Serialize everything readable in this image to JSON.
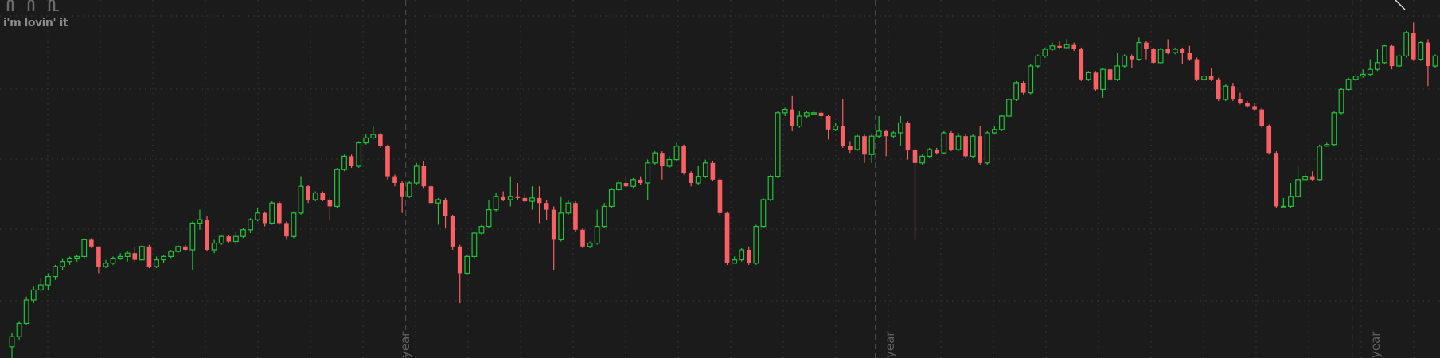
{
  "logo": {
    "tagline": "i'm lovin' it",
    "icon": "golden-arches-icon"
  },
  "year_labels": [
    "year",
    "year",
    "year"
  ],
  "colors": {
    "background": "#1b1b1c",
    "up": "#22c23a",
    "down": "#fa5f63",
    "grid": "#3a3a3a",
    "divider": "#4a4a4a",
    "label": "#5f5f5f"
  },
  "chart_data": {
    "type": "candlestick",
    "title": "",
    "xlabel": "",
    "ylabel": "",
    "ylim": [
      0,
      100
    ],
    "grid": true,
    "year_divider_index": [
      55,
      120,
      186
    ],
    "candles": [
      [
        1.0,
        4.0,
        -3.0,
        5.0
      ],
      [
        4.0,
        8.0,
        3.0,
        8.5
      ],
      [
        8.0,
        15.0,
        7.5,
        16.0
      ],
      [
        15.0,
        18.0,
        14.0,
        19.0
      ],
      [
        18.0,
        19.5,
        17.5,
        21.5
      ],
      [
        19.5,
        22.0,
        18.0,
        23.0
      ],
      [
        22.0,
        25.0,
        21.0,
        25.5
      ],
      [
        25.0,
        26.5,
        24.0,
        27.5
      ],
      [
        26.5,
        27.5,
        25.5,
        28.0
      ],
      [
        27.5,
        28.0,
        26.5,
        28.5
      ],
      [
        28.0,
        33.0,
        27.5,
        33.5
      ],
      [
        33.0,
        31.0,
        30.5,
        33.5
      ],
      [
        31.0,
        25.0,
        23.0,
        31.0
      ],
      [
        25.0,
        26.0,
        24.5,
        27.0
      ],
      [
        26.0,
        27.5,
        25.5,
        28.0
      ],
      [
        27.5,
        28.0,
        27.0,
        29.0
      ],
      [
        28.0,
        29.0,
        26.5,
        29.5
      ],
      [
        29.0,
        27.0,
        26.5,
        31.0
      ],
      [
        27.0,
        31.0,
        26.5,
        31.5
      ],
      [
        31.0,
        25.0,
        24.5,
        31.5
      ],
      [
        25.0,
        27.0,
        24.5,
        28.0
      ],
      [
        27.0,
        28.0,
        26.0,
        28.5
      ],
      [
        28.0,
        29.5,
        27.5,
        30.0
      ],
      [
        29.5,
        31.0,
        29.0,
        31.5
      ],
      [
        31.0,
        30.0,
        29.5,
        31.5
      ],
      [
        30.0,
        38.0,
        24.0,
        38.5
      ],
      [
        38.0,
        39.0,
        36.0,
        42.0
      ],
      [
        39.0,
        30.0,
        29.5,
        40.0
      ],
      [
        30.0,
        32.0,
        29.0,
        33.0
      ],
      [
        32.0,
        34.0,
        31.5,
        34.5
      ],
      [
        34.0,
        32.5,
        32.0,
        34.5
      ],
      [
        32.5,
        34.0,
        31.5,
        35.5
      ],
      [
        34.0,
        36.0,
        33.5,
        36.5
      ],
      [
        36.0,
        39.0,
        35.0,
        39.5
      ],
      [
        39.0,
        41.0,
        38.5,
        42.5
      ],
      [
        41.0,
        38.0,
        37.0,
        41.5
      ],
      [
        38.0,
        44.0,
        37.5,
        44.5
      ],
      [
        44.0,
        38.0,
        37.5,
        44.5
      ],
      [
        38.0,
        34.0,
        33.0,
        38.5
      ],
      [
        34.0,
        41.0,
        33.5,
        41.5
      ],
      [
        41.0,
        49.0,
        40.5,
        52.0
      ],
      [
        49.0,
        45.0,
        44.0,
        49.5
      ],
      [
        45.0,
        47.0,
        44.5,
        47.5
      ],
      [
        47.0,
        45.0,
        44.5,
        47.5
      ],
      [
        45.0,
        43.0,
        39.0,
        45.5
      ],
      [
        43.0,
        54.0,
        42.5,
        54.5
      ],
      [
        54.0,
        58.0,
        53.5,
        58.5
      ],
      [
        58.0,
        55.0,
        54.5,
        58.5
      ],
      [
        55.0,
        62.0,
        54.5,
        62.5
      ],
      [
        62.0,
        63.5,
        61.5,
        64.5
      ],
      [
        63.5,
        64.5,
        63.0,
        67.0
      ],
      [
        64.5,
        61.0,
        60.5,
        65.0
      ],
      [
        61.0,
        52.0,
        51.0,
        61.5
      ],
      [
        52.0,
        50.0,
        49.0,
        52.5
      ],
      [
        50.0,
        46.0,
        41.0,
        50.5
      ],
      [
        46.0,
        50.0,
        45.5,
        50.5
      ],
      [
        50.0,
        55.0,
        49.5,
        56.0
      ],
      [
        55.0,
        49.0,
        48.5,
        56.5
      ],
      [
        49.0,
        44.0,
        43.5,
        49.5
      ],
      [
        44.0,
        45.0,
        37.5,
        45.5
      ],
      [
        45.0,
        40.0,
        36.5,
        45.5
      ],
      [
        40.0,
        31.0,
        30.0,
        40.5
      ],
      [
        31.0,
        23.0,
        14.0,
        31.5
      ],
      [
        23.0,
        28.0,
        22.5,
        28.5
      ],
      [
        28.0,
        35.0,
        27.5,
        35.5
      ],
      [
        35.0,
        37.0,
        34.5,
        37.5
      ],
      [
        37.0,
        42.0,
        36.5,
        45.0
      ],
      [
        42.0,
        46.0,
        41.5,
        47.0
      ],
      [
        46.0,
        45.0,
        44.5,
        47.5
      ],
      [
        45.0,
        46.0,
        43.0,
        52.0
      ],
      [
        46.0,
        45.5,
        45.0,
        50.0
      ],
      [
        45.5,
        44.5,
        44.0,
        47.0
      ],
      [
        44.5,
        45.5,
        42.0,
        49.0
      ],
      [
        45.5,
        44.0,
        38.0,
        49.0
      ],
      [
        44.0,
        42.0,
        39.0,
        45.0
      ],
      [
        42.0,
        33.0,
        24.0,
        43.0
      ],
      [
        33.0,
        41.0,
        32.5,
        46.0
      ],
      [
        41.0,
        44.0,
        40.5,
        45.0
      ],
      [
        44.0,
        36.0,
        35.5,
        44.5
      ],
      [
        36.0,
        31.0,
        30.5,
        36.5
      ],
      [
        31.0,
        32.0,
        30.5,
        32.5
      ],
      [
        32.0,
        37.0,
        31.5,
        42.0
      ],
      [
        37.0,
        43.0,
        36.5,
        44.0
      ],
      [
        43.0,
        48.0,
        42.5,
        48.5
      ],
      [
        48.0,
        50.0,
        47.5,
        51.0
      ],
      [
        50.0,
        49.0,
        48.5,
        52.0
      ],
      [
        49.0,
        51.0,
        48.5,
        51.5
      ],
      [
        51.0,
        50.0,
        49.5,
        52.0
      ],
      [
        50.0,
        56.0,
        45.0,
        57.0
      ],
      [
        56.0,
        59.0,
        55.5,
        59.5
      ],
      [
        59.0,
        55.0,
        51.0,
        59.5
      ],
      [
        55.0,
        57.0,
        54.5,
        58.0
      ],
      [
        57.0,
        61.0,
        56.5,
        62.0
      ],
      [
        61.0,
        53.0,
        52.5,
        61.5
      ],
      [
        53.0,
        50.0,
        49.0,
        53.5
      ],
      [
        50.0,
        52.0,
        49.5,
        55.0
      ],
      [
        52.0,
        56.0,
        51.5,
        57.0
      ],
      [
        56.0,
        51.0,
        50.5,
        56.5
      ],
      [
        51.0,
        41.0,
        40.0,
        51.5
      ],
      [
        41.0,
        26.0,
        25.5,
        41.5
      ],
      [
        26.0,
        27.0,
        26.5,
        28.0
      ],
      [
        27.0,
        30.0,
        26.5,
        30.5
      ],
      [
        30.0,
        26.0,
        25.5,
        31.0
      ],
      [
        26.0,
        37.0,
        25.5,
        37.5
      ],
      [
        37.0,
        45.0,
        36.5,
        45.5
      ],
      [
        45.0,
        52.0,
        44.5,
        52.5
      ],
      [
        52.0,
        71.0,
        51.5,
        71.5
      ],
      [
        71.0,
        72.0,
        70.0,
        72.5
      ],
      [
        72.0,
        67.0,
        65.5,
        76.0
      ],
      [
        67.0,
        70.0,
        66.5,
        71.5
      ],
      [
        70.0,
        71.0,
        69.5,
        71.5
      ],
      [
        71.0,
        71.0,
        70.5,
        72.0
      ],
      [
        71.0,
        70.0,
        69.0,
        71.5
      ],
      [
        70.0,
        66.0,
        63.0,
        70.5
      ],
      [
        66.0,
        67.0,
        65.5,
        68.0
      ],
      [
        67.0,
        61.0,
        60.5,
        75.0
      ],
      [
        61.0,
        60.0,
        59.0,
        62.5
      ],
      [
        60.0,
        64.0,
        59.5,
        64.5
      ],
      [
        64.0,
        58.5,
        56.0,
        64.5
      ],
      [
        58.5,
        64.0,
        56.0,
        64.5
      ],
      [
        64.0,
        65.5,
        63.5,
        70.0
      ],
      [
        65.5,
        64.0,
        58.0,
        66.0
      ],
      [
        64.0,
        65.0,
        63.5,
        65.5
      ],
      [
        65.0,
        68.0,
        61.0,
        70.0
      ],
      [
        68.0,
        60.0,
        57.0,
        68.5
      ],
      [
        60.0,
        56.0,
        33.0,
        60.5
      ],
      [
        56.0,
        58.0,
        55.5,
        58.5
      ],
      [
        58.0,
        60.0,
        57.5,
        60.5
      ],
      [
        60.0,
        59.0,
        58.5,
        60.5
      ],
      [
        59.0,
        65.0,
        58.5,
        65.5
      ],
      [
        65.0,
        60.0,
        59.5,
        65.5
      ],
      [
        60.0,
        64.0,
        59.5,
        65.0
      ],
      [
        64.0,
        58.0,
        57.5,
        64.5
      ],
      [
        58.0,
        64.0,
        57.5,
        64.5
      ],
      [
        64.0,
        56.0,
        55.5,
        67.0
      ],
      [
        56.0,
        65.0,
        55.5,
        65.5
      ],
      [
        65.0,
        66.0,
        64.5,
        67.0
      ],
      [
        66.0,
        70.0,
        65.5,
        70.5
      ],
      [
        70.0,
        75.0,
        69.5,
        75.5
      ],
      [
        75.0,
        80.0,
        74.5,
        80.5
      ],
      [
        80.0,
        77.0,
        76.5,
        80.5
      ],
      [
        77.0,
        85.0,
        76.5,
        85.5
      ],
      [
        85.0,
        88.0,
        84.5,
        88.5
      ],
      [
        88.0,
        90.0,
        87.5,
        90.5
      ],
      [
        90.0,
        91.0,
        89.5,
        92.0
      ],
      [
        91.0,
        90.5,
        90.0,
        92.5
      ],
      [
        90.5,
        91.5,
        90.0,
        93.0
      ],
      [
        91.5,
        90.0,
        89.5,
        92.0
      ],
      [
        90.0,
        81.0,
        80.5,
        90.5
      ],
      [
        81.0,
        83.0,
        80.5,
        83.5
      ],
      [
        83.0,
        78.0,
        77.5,
        83.5
      ],
      [
        78.0,
        84.0,
        75.5,
        84.5
      ],
      [
        84.0,
        81.0,
        80.5,
        84.5
      ],
      [
        81.0,
        85.0,
        80.5,
        89.0
      ],
      [
        85.0,
        88.0,
        84.5,
        88.5
      ],
      [
        88.0,
        87.0,
        84.5,
        88.5
      ],
      [
        87.0,
        92.0,
        86.5,
        93.5
      ],
      [
        92.0,
        90.0,
        87.0,
        92.5
      ],
      [
        90.0,
        86.0,
        85.5,
        90.5
      ],
      [
        86.0,
        90.0,
        85.5,
        90.5
      ],
      [
        90.0,
        89.0,
        88.5,
        93.0
      ],
      [
        89.0,
        90.0,
        88.5,
        90.5
      ],
      [
        90.0,
        89.0,
        85.5,
        90.5
      ],
      [
        89.0,
        87.0,
        86.5,
        91.0
      ],
      [
        87.0,
        81.0,
        80.5,
        87.5
      ],
      [
        81.0,
        82.0,
        80.5,
        82.5
      ],
      [
        82.0,
        81.0,
        80.5,
        84.5
      ],
      [
        81.0,
        75.0,
        74.5,
        81.5
      ],
      [
        75.0,
        79.0,
        74.5,
        79.5
      ],
      [
        79.0,
        75.0,
        74.5,
        80.0
      ],
      [
        75.0,
        74.0,
        73.5,
        77.0
      ],
      [
        74.0,
        73.0,
        72.5,
        74.5
      ],
      [
        73.0,
        72.0,
        71.5,
        74.0
      ],
      [
        72.0,
        67.0,
        66.5,
        72.5
      ],
      [
        67.0,
        59.0,
        58.5,
        67.5
      ],
      [
        59.0,
        43.0,
        42.5,
        59.5
      ],
      [
        43.0,
        43.0,
        42.5,
        45.5
      ],
      [
        43.0,
        46.0,
        42.5,
        50.0
      ],
      [
        46.0,
        51.0,
        45.5,
        55.0
      ],
      [
        51.0,
        52.0,
        50.5,
        53.0
      ],
      [
        52.0,
        51.0,
        50.5,
        53.5
      ],
      [
        51.0,
        61.0,
        50.5,
        61.5
      ],
      [
        61.0,
        61.5,
        61.0,
        62.0
      ],
      [
        61.5,
        71.0,
        61.0,
        71.5
      ],
      [
        71.0,
        78.0,
        70.5,
        78.5
      ],
      [
        78.0,
        81.0,
        77.5,
        81.5
      ],
      [
        81.0,
        82.0,
        80.5,
        82.5
      ],
      [
        82.0,
        82.5,
        81.5,
        84.0
      ],
      [
        82.5,
        84.0,
        82.0,
        87.0
      ],
      [
        84.0,
        86.0,
        83.5,
        90.0
      ],
      [
        86.0,
        91.0,
        85.5,
        91.5
      ],
      [
        91.0,
        85.0,
        84.0,
        91.5
      ],
      [
        85.0,
        88.0,
        84.5,
        88.5
      ],
      [
        88.0,
        95.0,
        87.5,
        95.5
      ],
      [
        95.0,
        87.0,
        86.5,
        98.0
      ],
      [
        87.0,
        92.0,
        86.5,
        92.5
      ],
      [
        92.0,
        85.0,
        79.0,
        93.0
      ],
      [
        85.0,
        88.0,
        84.5,
        88.5
      ]
    ]
  }
}
